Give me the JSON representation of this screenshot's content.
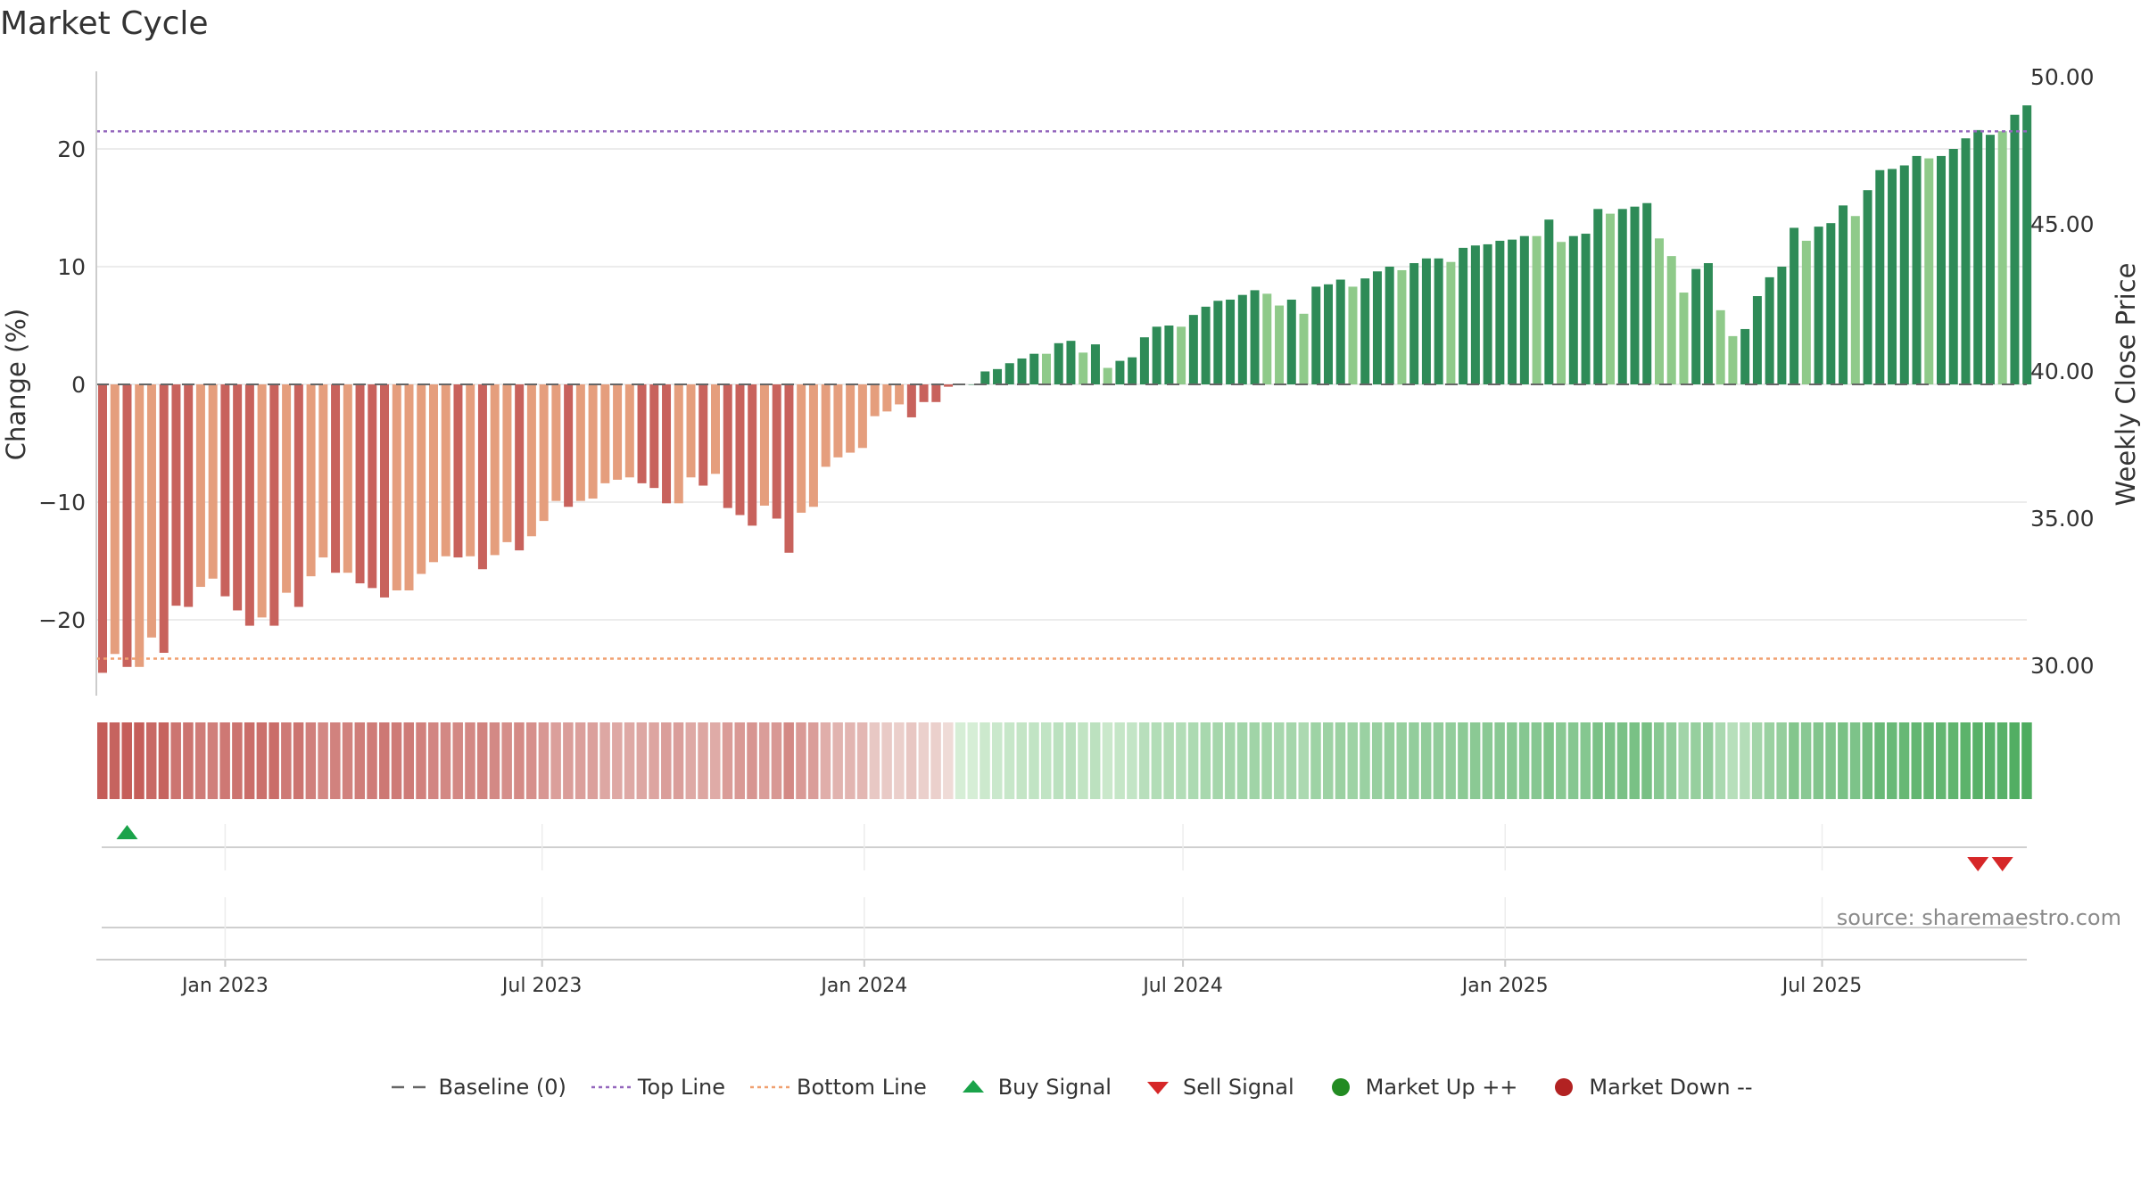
{
  "title": "Market Cycle",
  "source": "source: sharemaestro.com",
  "colors": {
    "up_dark": "#2e8b57",
    "up_light": "#8fca8a",
    "down_dark": "#c8625c",
    "down_light": "#e59e7d",
    "top_line": "#9467bd",
    "bottom_line": "#f0a070",
    "baseline": "#666666",
    "buy": "#1aa34a",
    "sell": "#d62728",
    "market_up": "#228b22",
    "market_down": "#b22222"
  },
  "legend": [
    {
      "key": "baseline",
      "label": "Baseline (0)",
      "icon": "dash-line-icon"
    },
    {
      "key": "top",
      "label": "Top Line",
      "icon": "dotted-line-icon"
    },
    {
      "key": "bottom",
      "label": "Bottom Line",
      "icon": "dotted-line-icon"
    },
    {
      "key": "buy",
      "label": "Buy Signal",
      "icon": "triangle-up-icon"
    },
    {
      "key": "sell",
      "label": "Sell Signal",
      "icon": "triangle-down-icon"
    },
    {
      "key": "up",
      "label": "Market Up ++",
      "icon": "circle-icon"
    },
    {
      "key": "down",
      "label": "Market Down --",
      "icon": "circle-icon"
    }
  ],
  "chart_data": {
    "type": "bar",
    "title": "Market Cycle",
    "ylabel_left": "Change (%)",
    "ylabel_right": "Weekly Close Price",
    "y_ticks_left": [
      "20",
      "10",
      "0",
      "−10",
      "−20"
    ],
    "y_tick_values_left": [
      20,
      10,
      0,
      -10,
      -20
    ],
    "y_ticks_right": [
      "50.00",
      "45.00",
      "40.00",
      "35.00",
      "30.00"
    ],
    "y_tick_values_right": [
      50,
      45,
      40,
      35,
      30
    ],
    "ylim_left": [
      -26,
      26.5
    ],
    "x_ticks": [
      "Jan 2023",
      "Jul 2023",
      "Jan 2024",
      "Jul 2024",
      "Jan 2025",
      "Jul 2025"
    ],
    "x_tick_dates": [
      "2023-01-01",
      "2023-07-01",
      "2024-01-01",
      "2024-07-01",
      "2025-01-01",
      "2025-07-01"
    ],
    "x_start_date": "2022-10-23",
    "week_interval_days": 7,
    "top_line": 21.5,
    "bottom_line": -23.3,
    "baseline": 0,
    "grid": true,
    "values": [
      -24.5,
      -22.9,
      -24.0,
      -24.0,
      -21.5,
      -22.8,
      -18.8,
      -18.9,
      -17.2,
      -16.5,
      -18.0,
      -19.2,
      -20.5,
      -19.8,
      -20.5,
      -17.7,
      -18.9,
      -16.3,
      -14.7,
      -16.0,
      -16.0,
      -16.9,
      -17.3,
      -18.1,
      -17.5,
      -17.5,
      -16.1,
      -15.1,
      -14.6,
      -14.7,
      -14.6,
      -15.7,
      -14.5,
      -13.4,
      -14.1,
      -12.9,
      -11.6,
      -9.9,
      -10.4,
      -9.9,
      -9.7,
      -8.4,
      -8.1,
      -7.9,
      -8.4,
      -8.8,
      -10.1,
      -10.1,
      -7.9,
      -8.6,
      -7.6,
      -10.5,
      -11.1,
      -12.0,
      -10.3,
      -11.4,
      -14.3,
      -10.9,
      -10.4,
      -7.0,
      -6.2,
      -5.8,
      -5.4,
      -2.7,
      -2.3,
      -1.7,
      -2.8,
      -1.5,
      -1.5,
      -0.2,
      0.0,
      0.0,
      1.1,
      1.3,
      1.8,
      2.2,
      2.6,
      2.6,
      3.5,
      3.7,
      2.7,
      3.4,
      1.4,
      2.0,
      2.3,
      4.0,
      4.9,
      5.0,
      4.9,
      5.9,
      6.6,
      7.1,
      7.2,
      7.6,
      8.0,
      7.7,
      6.7,
      7.2,
      6.0,
      8.3,
      8.5,
      8.9,
      8.3,
      9.0,
      9.6,
      10.0,
      9.7,
      10.3,
      10.7,
      10.7,
      10.4,
      11.6,
      11.8,
      11.9,
      12.2,
      12.3,
      12.6,
      12.6,
      14.0,
      12.1,
      12.6,
      12.8,
      14.9,
      14.5,
      14.9,
      15.1,
      15.4,
      12.4,
      10.9,
      7.8,
      9.8,
      10.3,
      6.3,
      4.1,
      4.7,
      7.5,
      9.1,
      10.0,
      13.3,
      12.2,
      13.4,
      13.7,
      15.2,
      14.3,
      16.5,
      18.2,
      18.3,
      18.6,
      19.4,
      19.2,
      19.4,
      20.0,
      20.9,
      21.6,
      21.2,
      21.5,
      22.9,
      23.7
    ],
    "bar_shades": [
      1,
      0,
      1,
      0,
      0,
      1,
      1,
      1,
      0,
      0,
      1,
      1,
      1,
      0,
      1,
      0,
      1,
      0,
      0,
      1,
      0,
      1,
      1,
      1,
      0,
      0,
      0,
      0,
      0,
      1,
      0,
      1,
      0,
      0,
      1,
      0,
      0,
      0,
      1,
      0,
      0,
      0,
      0,
      0,
      1,
      1,
      1,
      0,
      0,
      1,
      0,
      1,
      1,
      1,
      0,
      1,
      1,
      0,
      0,
      0,
      0,
      0,
      0,
      0,
      0,
      0,
      1,
      1,
      1,
      1,
      1,
      1,
      1,
      1,
      1,
      1,
      1,
      0,
      1,
      1,
      0,
      1,
      0,
      1,
      1,
      1,
      1,
      1,
      0,
      1,
      1,
      1,
      1,
      1,
      1,
      0,
      0,
      1,
      0,
      1,
      1,
      1,
      0,
      1,
      1,
      1,
      0,
      1,
      1,
      1,
      0,
      1,
      1,
      1,
      1,
      1,
      1,
      0,
      1,
      0,
      1,
      1,
      1,
      0,
      1,
      1,
      1,
      0,
      0,
      0,
      1,
      1,
      0,
      0,
      1,
      1,
      1,
      1,
      1,
      0,
      1,
      1,
      1,
      0,
      1,
      1,
      1,
      1,
      1,
      0,
      1,
      1,
      1,
      1,
      1,
      0,
      1,
      1
    ],
    "signals": {
      "buy_weeks": [
        2
      ],
      "sell_weeks": [
        153,
        155
      ]
    }
  }
}
